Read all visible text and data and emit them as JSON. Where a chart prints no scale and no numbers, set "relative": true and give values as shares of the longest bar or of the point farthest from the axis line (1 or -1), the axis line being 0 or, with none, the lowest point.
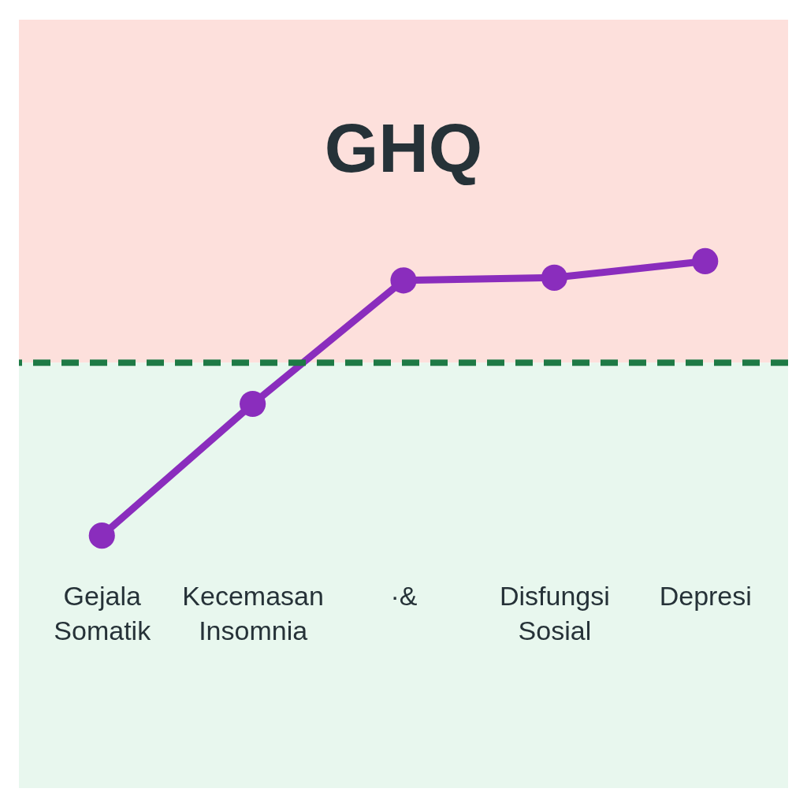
{
  "chart_data": {
    "type": "line",
    "title": "GHQ",
    "relative": true,
    "categories": [
      "Gejala Somatik",
      "Kecemasan Insomnia",
      "·&",
      "Disfungsi Sosial",
      "Depresi"
    ],
    "series": [
      {
        "color": "#8a2dbd",
        "values": [
          0,
          0.48,
          0.93,
          0.94,
          1
        ]
      }
    ],
    "marker": "circle",
    "line_style": "solid",
    "grid": false,
    "legend": false,
    "ref_lines": [
      {
        "axis": "y",
        "value": 0.63,
        "color": "#1e7a45",
        "line_style": "dashed"
      }
    ],
    "bands": [
      {
        "axis": "y",
        "from": 0.63,
        "to": 1.88,
        "color": "#fde0dc"
      },
      {
        "axis": "y",
        "from": -0.92,
        "to": 0.63,
        "color": "#e8f7ee"
      }
    ]
  }
}
